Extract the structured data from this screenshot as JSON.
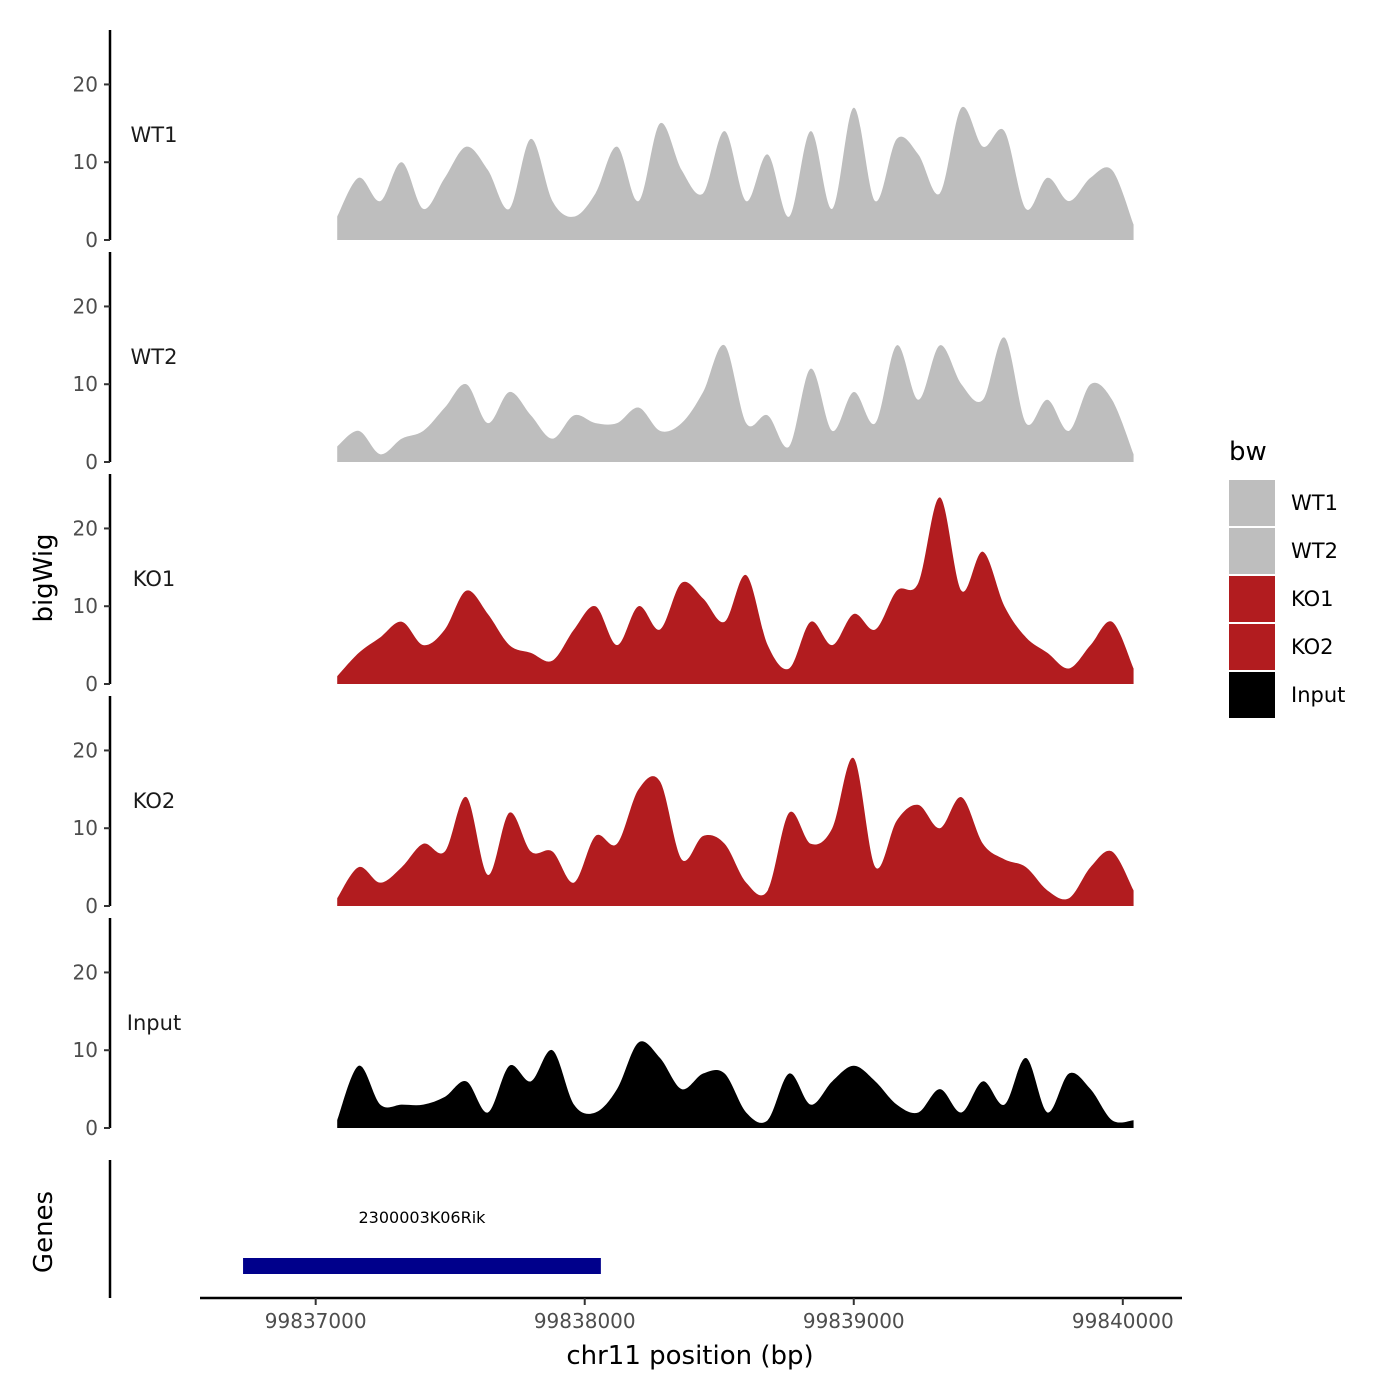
{
  "chart_data": {
    "type": "area",
    "chromosome": "chr11",
    "xlabel": "chr11 position (bp)",
    "ylabel": "bigWig",
    "genes_label": "Genes",
    "xlim": [
      99836570,
      99840220
    ],
    "ylim": [
      0,
      27
    ],
    "x_ticks": [
      99837000,
      99838000,
      99839000,
      99840000
    ],
    "x_tick_labels": [
      "99837000",
      "99838000",
      "99839000",
      "99840000"
    ],
    "y_ticks": [
      0,
      10,
      20
    ],
    "y_tick_labels": [
      "0",
      "10",
      "20"
    ],
    "legend": {
      "title": "bw",
      "entries": [
        {
          "label": "WT1",
          "color": "#bebebe"
        },
        {
          "label": "WT2",
          "color": "#bebebe"
        },
        {
          "label": "KO1",
          "color": "#b21c1f"
        },
        {
          "label": "KO2",
          "color": "#b21c1f"
        },
        {
          "label": "Input",
          "color": "#000000"
        }
      ]
    },
    "x": [
      99837080,
      99837160,
      99837240,
      99837320,
      99837400,
      99837480,
      99837560,
      99837640,
      99837720,
      99837800,
      99837880,
      99837960,
      99838040,
      99838120,
      99838200,
      99838280,
      99838360,
      99838440,
      99838520,
      99838600,
      99838680,
      99838760,
      99838840,
      99838920,
      99839000,
      99839080,
      99839160,
      99839240,
      99839320,
      99839400,
      99839480,
      99839560,
      99839640,
      99839720,
      99839800,
      99839880,
      99839960,
      99840040
    ],
    "series": [
      {
        "name": "WT1",
        "color": "#bebebe",
        "values": [
          3,
          8,
          5,
          10,
          4,
          8,
          12,
          9,
          4,
          13,
          5,
          3,
          6,
          12,
          5,
          15,
          9,
          6,
          14,
          5,
          11,
          3,
          14,
          4,
          17,
          5,
          13,
          11,
          6,
          17,
          12,
          14,
          4,
          8,
          5,
          8,
          9,
          2
        ]
      },
      {
        "name": "WT2",
        "color": "#bebebe",
        "values": [
          2,
          4,
          1,
          3,
          4,
          7,
          10,
          5,
          9,
          6,
          3,
          6,
          5,
          5,
          7,
          4,
          5,
          9,
          15,
          5,
          6,
          2,
          12,
          4,
          9,
          5,
          15,
          8,
          15,
          10,
          8,
          16,
          5,
          8,
          4,
          10,
          8,
          1
        ]
      },
      {
        "name": "KO1",
        "color": "#b21c1f",
        "values": [
          1,
          4,
          6,
          8,
          5,
          7,
          12,
          9,
          5,
          4,
          3,
          7,
          10,
          5,
          10,
          7,
          13,
          11,
          8,
          14,
          5,
          2,
          8,
          5,
          9,
          7,
          12,
          13,
          24,
          12,
          17,
          10,
          6,
          4,
          2,
          5,
          8,
          2
        ]
      },
      {
        "name": "KO2",
        "color": "#b21c1f",
        "values": [
          1,
          5,
          3,
          5,
          8,
          7,
          14,
          4,
          12,
          7,
          7,
          3,
          9,
          8,
          15,
          16,
          6,
          9,
          8,
          3,
          2,
          12,
          8,
          10,
          19,
          5,
          11,
          13,
          10,
          14,
          8,
          6,
          5,
          2,
          1,
          5,
          7,
          2
        ]
      },
      {
        "name": "Input",
        "color": "#000000",
        "values": [
          1,
          8,
          3,
          3,
          3,
          4,
          6,
          2,
          8,
          6,
          10,
          3,
          2,
          5,
          11,
          9,
          5,
          7,
          7,
          2,
          1,
          7,
          3,
          6,
          8,
          6,
          3,
          2,
          5,
          2,
          6,
          3,
          9,
          2,
          7,
          5,
          1,
          1
        ]
      }
    ],
    "genes": [
      {
        "name": "2300003K06Rik",
        "start": 99836730,
        "end": 99838060,
        "color": "#00008b"
      }
    ]
  }
}
